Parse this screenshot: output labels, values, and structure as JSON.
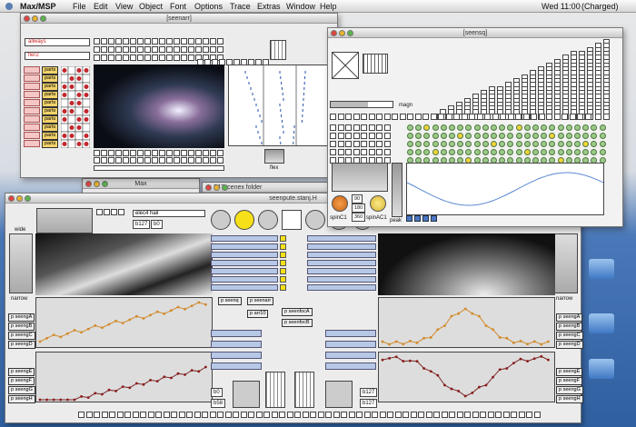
{
  "menubar": {
    "app": "Max/MSP",
    "items": [
      "File",
      "Edit",
      "View",
      "Object",
      "Font",
      "Options",
      "Trace",
      "Extras",
      "Window",
      "Help"
    ],
    "clock": "Wed 11:00",
    "battery": "(Charged)"
  },
  "windows": [
    {
      "title": "[seenarr]",
      "labels": [
        "allways",
        "fler2",
        "flex"
      ],
      "parts": [
        "parts",
        "parts",
        "parts",
        "parts",
        "parts",
        "parts",
        "parts",
        "parts",
        "parts",
        "parts"
      ]
    },
    {
      "title": "[seensq]",
      "labels": [
        "magn",
        "spinC1",
        "spinAC1",
        "peak",
        "90",
        "180",
        "360"
      ]
    },
    {
      "title": "Max"
    },
    {
      "title": "747scenex folder"
    },
    {
      "title": "seenpute.stanj.H",
      "labels": [
        "wide",
        "narrow",
        "elec4 hail",
        "b127",
        "b0",
        "p seenq",
        "p seenarr",
        "p arr10",
        "p seenfocA",
        "p seenfocB",
        "b0",
        "b58",
        "b127",
        "b127"
      ],
      "left_subpatches": [
        "p seengA",
        "p seengB",
        "p seengC",
        "p seengD",
        "p seengE",
        "p seengF",
        "p seengG",
        "p seengH"
      ],
      "right_subpatches": [
        "p seengA",
        "p seengB",
        "p seengC",
        "p seengD",
        "p seengE",
        "p seengF",
        "p seengG",
        "p seengH"
      ]
    }
  ]
}
